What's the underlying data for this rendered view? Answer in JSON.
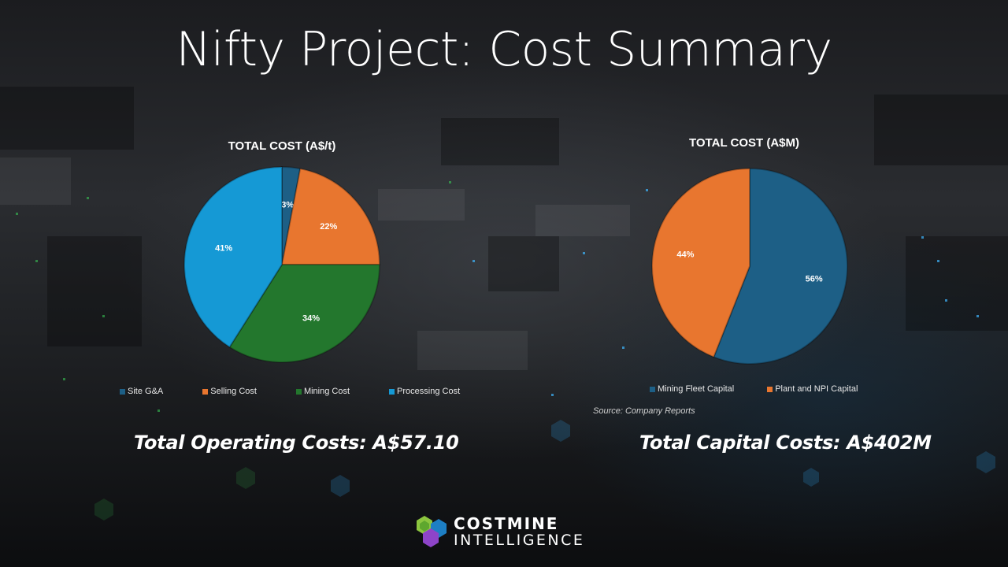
{
  "title": "Nifty Project: Cost Summary",
  "chart_data": [
    {
      "type": "pie",
      "title": "TOTAL COST (A$/t)",
      "categories": [
        "Site G&A",
        "Selling Cost",
        "Mining Cost",
        "Processing Cost"
      ],
      "values": [
        3,
        22,
        34,
        41
      ],
      "value_labels": [
        "3%",
        "22%",
        "34%",
        "41%"
      ],
      "colors": [
        "#1d5f86",
        "#e8762f",
        "#23772d",
        "#1599d5"
      ],
      "legend_position": "bottom"
    },
    {
      "type": "pie",
      "title": "TOTAL COST (A$M)",
      "categories": [
        "Mining Fleet Capital",
        "Plant and NPI Capital"
      ],
      "values": [
        56,
        44
      ],
      "value_labels": [
        "56%",
        "44%"
      ],
      "colors": [
        "#1d5f86",
        "#e8762f"
      ],
      "legend_position": "bottom"
    }
  ],
  "source_note": "Source: Company Reports",
  "totals": {
    "operating": "Total Operating Costs: A$57.10",
    "capital": "Total Capital Costs: A$402M"
  },
  "logo": {
    "line1": "COSTMINE",
    "line2": "INTELLIGENCE",
    "icon": "hexagon-cube-logo-icon"
  }
}
